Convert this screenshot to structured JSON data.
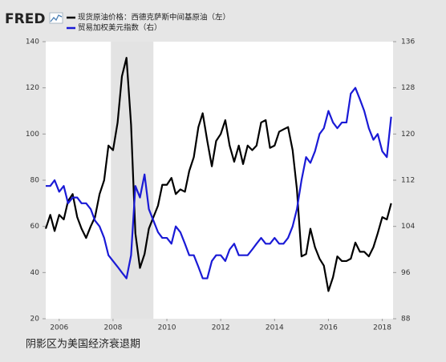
{
  "logo": "FRED",
  "caption": "阴影区为美国经济衰退期",
  "chart_data": {
    "type": "line",
    "x": [
      2005.5,
      2005.67,
      2005.83,
      2006.0,
      2006.17,
      2006.33,
      2006.5,
      2006.67,
      2006.83,
      2007.0,
      2007.17,
      2007.33,
      2007.5,
      2007.67,
      2007.83,
      2008.0,
      2008.17,
      2008.33,
      2008.5,
      2008.67,
      2008.83,
      2009.0,
      2009.17,
      2009.33,
      2009.5,
      2009.67,
      2009.83,
      2010.0,
      2010.17,
      2010.33,
      2010.5,
      2010.67,
      2010.83,
      2011.0,
      2011.17,
      2011.33,
      2011.5,
      2011.67,
      2011.83,
      2012.0,
      2012.17,
      2012.33,
      2012.5,
      2012.67,
      2012.83,
      2013.0,
      2013.17,
      2013.33,
      2013.5,
      2013.67,
      2013.83,
      2014.0,
      2014.17,
      2014.33,
      2014.5,
      2014.67,
      2014.83,
      2015.0,
      2015.17,
      2015.33,
      2015.5,
      2015.67,
      2015.83,
      2016.0,
      2016.17,
      2016.33,
      2016.5,
      2016.67,
      2016.83,
      2017.0,
      2017.17,
      2017.33,
      2017.5,
      2017.67,
      2017.83,
      2018.0,
      2018.17,
      2018.33
    ],
    "series": [
      {
        "name": "现货原油价格：西德克萨斯中间基原油（左）",
        "color": "#000000",
        "values": [
          59,
          65,
          58,
          65,
          63,
          71,
          74,
          64,
          59,
          55,
          60,
          64,
          74,
          80,
          95,
          93,
          105,
          125,
          133,
          104,
          57,
          42,
          48,
          59,
          64,
          69,
          78,
          78,
          81,
          74,
          76,
          75,
          84,
          90,
          103,
          109,
          97,
          86,
          97,
          100,
          106,
          95,
          88,
          95,
          87,
          95,
          93,
          95,
          105,
          106,
          94,
          95,
          101,
          102,
          103,
          93,
          76,
          47,
          48,
          59,
          51,
          46,
          43,
          32,
          38,
          47,
          45,
          45,
          46,
          53,
          49,
          49,
          47,
          51,
          57,
          64,
          63,
          70
        ]
      },
      {
        "name": "贸易加权美元指数（右）",
        "color": "#1a1ad6",
        "axis": "y2",
        "values": [
          111,
          111,
          112,
          110,
          111,
          108,
          109,
          109,
          108,
          108,
          107,
          105,
          104,
          102,
          99,
          98,
          97,
          96,
          95,
          99,
          111,
          109,
          113,
          107,
          105,
          103,
          102,
          102,
          101,
          104,
          103,
          101,
          99,
          99,
          97,
          95,
          95,
          98,
          99,
          99,
          98,
          100,
          101,
          99,
          99,
          99,
          100,
          101,
          102,
          101,
          101,
          102,
          101,
          101,
          102,
          104,
          107,
          112,
          116,
          115,
          117,
          120,
          121,
          124,
          122,
          121,
          122,
          122,
          127,
          128,
          126,
          124,
          121,
          119,
          120,
          117,
          116,
          123
        ]
      }
    ],
    "recessions": [
      [
        2007.92,
        2009.5
      ]
    ],
    "recession_color": "#e3e3e3",
    "xlim": [
      2005.5,
      2018.4
    ],
    "xticks": [
      2006,
      2008,
      2010,
      2012,
      2014,
      2016,
      2018
    ],
    "ylim": [
      20,
      140
    ],
    "yticks": [
      20,
      40,
      60,
      80,
      100,
      120,
      140
    ],
    "y2lim": [
      88,
      136
    ],
    "y2ticks": [
      88,
      96,
      104,
      112,
      120,
      128,
      136
    ]
  }
}
